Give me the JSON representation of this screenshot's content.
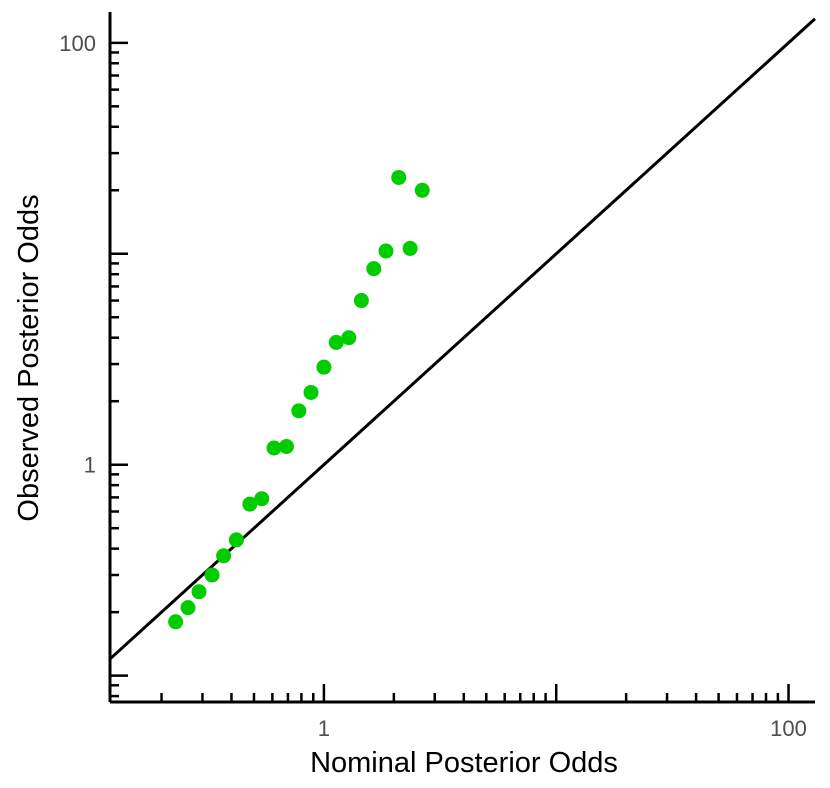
{
  "chart_data": {
    "type": "scatter",
    "title": "",
    "xlabel": "Nominal Posterior Odds",
    "ylabel": "Observed Posterior Odds",
    "x_scale": "log",
    "y_scale": "log",
    "xlim": [
      0.12,
      130
    ],
    "ylim": [
      0.075,
      140
    ],
    "x_tick_labels": [
      {
        "value": 1,
        "label": "1"
      },
      {
        "value": 100,
        "label": "100"
      }
    ],
    "y_tick_labels": [
      {
        "value": 1,
        "label": "1"
      },
      {
        "value": 100,
        "label": "100"
      }
    ],
    "grid": false,
    "reference_line": {
      "type": "identity",
      "color": "#000000"
    },
    "point_color": "#00cc00",
    "line_color": "#000000",
    "points": [
      {
        "x": 0.23,
        "y": 0.18
      },
      {
        "x": 0.26,
        "y": 0.21
      },
      {
        "x": 0.29,
        "y": 0.25
      },
      {
        "x": 0.33,
        "y": 0.3
      },
      {
        "x": 0.37,
        "y": 0.37
      },
      {
        "x": 0.42,
        "y": 0.44
      },
      {
        "x": 0.48,
        "y": 0.65
      },
      {
        "x": 0.54,
        "y": 0.69
      },
      {
        "x": 0.61,
        "y": 1.2
      },
      {
        "x": 0.69,
        "y": 1.22
      },
      {
        "x": 0.78,
        "y": 1.8
      },
      {
        "x": 0.88,
        "y": 2.2
      },
      {
        "x": 1.0,
        "y": 2.9
      },
      {
        "x": 1.13,
        "y": 3.8
      },
      {
        "x": 1.28,
        "y": 4.0
      },
      {
        "x": 1.45,
        "y": 6.0
      },
      {
        "x": 1.64,
        "y": 8.5
      },
      {
        "x": 1.85,
        "y": 10.3
      },
      {
        "x": 2.1,
        "y": 23.0
      },
      {
        "x": 2.35,
        "y": 10.6
      },
      {
        "x": 2.65,
        "y": 20.0
      }
    ]
  }
}
